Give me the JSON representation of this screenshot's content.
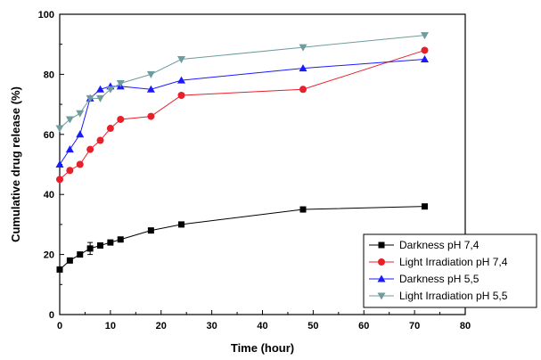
{
  "chart_data": {
    "type": "line",
    "title": "",
    "xlabel": "Time (hour)",
    "ylabel": "Cumulative drug release (%)",
    "xlim": [
      0,
      80
    ],
    "ylim": [
      0,
      100
    ],
    "xticks": [
      0,
      10,
      20,
      30,
      40,
      50,
      60,
      70,
      80
    ],
    "yticks": [
      0,
      20,
      40,
      60,
      80,
      100
    ],
    "grid": false,
    "legend_position": "bottom-right",
    "series": [
      {
        "name": "Darkness pH 7,4",
        "color": "#000000",
        "marker": "square",
        "x": [
          0,
          2,
          4,
          6,
          8,
          10,
          12,
          18,
          24,
          48,
          72
        ],
        "y": [
          15,
          18,
          20,
          22,
          23,
          24,
          25,
          28,
          30,
          35,
          36
        ],
        "error": [
          0,
          0,
          0,
          2,
          0,
          0,
          0,
          0,
          0,
          0,
          0
        ]
      },
      {
        "name": "Light Irradiation pH 7,4",
        "color": "#e8202a",
        "marker": "circle",
        "x": [
          0,
          2,
          4,
          6,
          8,
          10,
          12,
          18,
          24,
          48,
          72
        ],
        "y": [
          45,
          48,
          50,
          55,
          58,
          62,
          65,
          66,
          73,
          75,
          88
        ],
        "error": [
          0,
          0,
          0,
          0,
          0,
          0,
          0,
          0,
          0,
          0,
          0
        ]
      },
      {
        "name": "Darkness pH 5,5",
        "color": "#1a1aff",
        "marker": "triangle-up",
        "x": [
          0,
          2,
          4,
          6,
          8,
          10,
          12,
          18,
          24,
          48,
          72
        ],
        "y": [
          50,
          55,
          60,
          72,
          75,
          76,
          76,
          75,
          78,
          82,
          85
        ],
        "error": [
          0,
          0,
          0,
          0,
          0,
          0,
          0,
          0,
          0,
          0,
          0
        ]
      },
      {
        "name": "Light Irradiation pH 5,5",
        "color": "#6f9c9c",
        "marker": "triangle-down",
        "x": [
          0,
          2,
          4,
          6,
          8,
          10,
          12,
          18,
          24,
          48,
          72
        ],
        "y": [
          62,
          65,
          67,
          72,
          72,
          75,
          77,
          80,
          85,
          89,
          93
        ],
        "error": [
          0,
          0,
          0,
          0,
          0,
          0,
          0,
          0,
          0,
          0,
          0
        ]
      }
    ]
  }
}
